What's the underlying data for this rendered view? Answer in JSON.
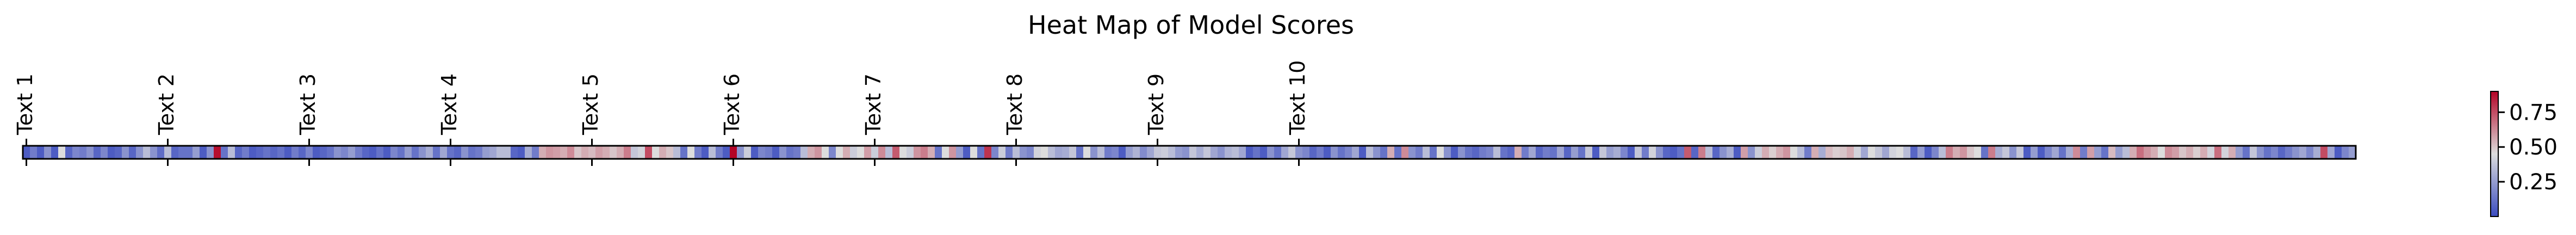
{
  "chart_data": {
    "type": "heatmap",
    "title": "Heat Map of Model Scores",
    "xlabel": "",
    "ylabel": "",
    "colormap": "coolwarm",
    "color_low": "#3b4cc0",
    "color_mid": "#dddddd",
    "color_high": "#b40426",
    "vmin": 0.0,
    "vmax": 0.9,
    "grid": false,
    "tick_labels": [
      "Text 1",
      "Text 2",
      "Text 3",
      "Text 4",
      "Text 5",
      "Text 6",
      "Text 7",
      "Text 8",
      "Text 9",
      "Text 10"
    ],
    "tick_columns": [
      0,
      20,
      40,
      60,
      80,
      100,
      120,
      140,
      160,
      180
    ],
    "colorbar_ticks": [
      {
        "value": 0.25,
        "label": "0.25"
      },
      {
        "value": 0.5,
        "label": "0.50"
      },
      {
        "value": 0.75,
        "label": "0.75"
      }
    ],
    "values": [
      0.05,
      0.15,
      0.05,
      0.22,
      0.05,
      0.45,
      0.08,
      0.18,
      0.15,
      0.22,
      0.08,
      0.18,
      0.05,
      0.08,
      0.22,
      0.08,
      0.22,
      0.35,
      0.22,
      0.1,
      0.35,
      0.08,
      0.12,
      0.12,
      0.25,
      0.05,
      0.22,
      0.88,
      0.12,
      0.35,
      0.08,
      0.15,
      0.05,
      0.08,
      0.12,
      0.08,
      0.12,
      0.05,
      0.15,
      0.08,
      0.18,
      0.05,
      0.08,
      0.12,
      0.22,
      0.18,
      0.25,
      0.15,
      0.08,
      0.05,
      0.12,
      0.05,
      0.18,
      0.12,
      0.25,
      0.12,
      0.22,
      0.3,
      0.12,
      0.28,
      0.12,
      0.08,
      0.22,
      0.12,
      0.15,
      0.25,
      0.28,
      0.35,
      0.35,
      0.08,
      0.05,
      0.3,
      0.15,
      0.55,
      0.6,
      0.58,
      0.55,
      0.62,
      0.5,
      0.55,
      0.52,
      0.58,
      0.55,
      0.5,
      0.55,
      0.65,
      0.38,
      0.42,
      0.75,
      0.45,
      0.55,
      0.5,
      0.35,
      0.12,
      0.45,
      0.15,
      0.05,
      0.35,
      0.15,
      0.05,
      0.9,
      0.22,
      0.4,
      0.05,
      0.18,
      0.15,
      0.05,
      0.22,
      0.12,
      0.15,
      0.35,
      0.55,
      0.6,
      0.45,
      0.18,
      0.45,
      0.55,
      0.4,
      0.45,
      0.58,
      0.4,
      0.62,
      0.35,
      0.72,
      0.45,
      0.4,
      0.6,
      0.65,
      0.55,
      0.12,
      0.45,
      0.6,
      0.25,
      0.05,
      0.45,
      0.12,
      0.8,
      0.18,
      0.4,
      0.15,
      0.35,
      0.22,
      0.18,
      0.42,
      0.45,
      0.35,
      0.28,
      0.3,
      0.38,
      0.12,
      0.45,
      0.22,
      0.35,
      0.15,
      0.18,
      0.05,
      0.25,
      0.32,
      0.2,
      0.28,
      0.38,
      0.4,
      0.35,
      0.25,
      0.22,
      0.38,
      0.3,
      0.38,
      0.28,
      0.22,
      0.32,
      0.35,
      0.28,
      0.05,
      0.12,
      0.05,
      0.22,
      0.12,
      0.28,
      0.38,
      0.22,
      0.18,
      0.08,
      0.15,
      0.05,
      0.22,
      0.12,
      0.18,
      0.28,
      0.05,
      0.35,
      0.22,
      0.12,
      0.55,
      0.12,
      0.62,
      0.22,
      0.15,
      0.35,
      0.12,
      0.45,
      0.22,
      0.05,
      0.22,
      0.12,
      0.08,
      0.15,
      0.18,
      0.35,
      0.12,
      0.08,
      0.55,
      0.15,
      0.28,
      0.08,
      0.15,
      0.12,
      0.28,
      0.08,
      0.25,
      0.12,
      0.38,
      0.05,
      0.38,
      0.25,
      0.3,
      0.18,
      0.05,
      0.38,
      0.15,
      0.42,
      0.22,
      0.08,
      0.05,
      0.12,
      0.72,
      0.08,
      0.65,
      0.35,
      0.08,
      0.22,
      0.3,
      0.05,
      0.58,
      0.22,
      0.4,
      0.55,
      0.48,
      0.55,
      0.6,
      0.45,
      0.35,
      0.15,
      0.55,
      0.3,
      0.52,
      0.48,
      0.5,
      0.55,
      0.42,
      0.28,
      0.45,
      0.38,
      0.28,
      0.42,
      0.45,
      0.35,
      0.08,
      0.25,
      0.05,
      0.18,
      0.35,
      0.65,
      0.55,
      0.6,
      0.5,
      0.45,
      0.12,
      0.65,
      0.3,
      0.38,
      0.22,
      0.38,
      0.05,
      0.25,
      0.05,
      0.18,
      0.28,
      0.12,
      0.3,
      0.62,
      0.15,
      0.58,
      0.25,
      0.12,
      0.52,
      0.25,
      0.35,
      0.55,
      0.68,
      0.6,
      0.55,
      0.45,
      0.62,
      0.58,
      0.5,
      0.55,
      0.48,
      0.55,
      0.42,
      0.68,
      0.42,
      0.55,
      0.25,
      0.12,
      0.38,
      0.22,
      0.12,
      0.18,
      0.08,
      0.15,
      0.22,
      0.28,
      0.18,
      0.3,
      0.75,
      0.28,
      0.05,
      0.18,
      0.25
    ]
  }
}
